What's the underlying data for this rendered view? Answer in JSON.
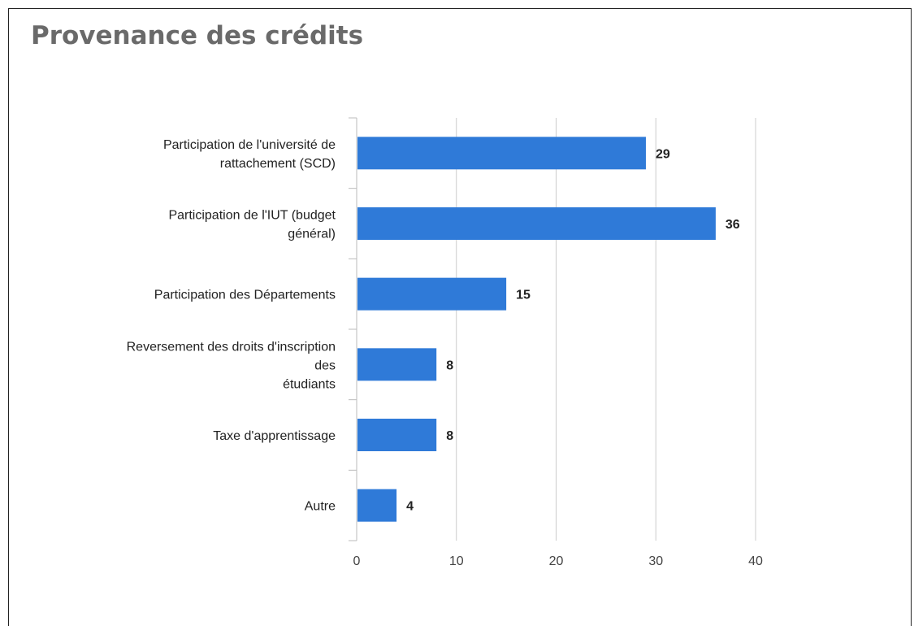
{
  "chart_data": {
    "type": "bar",
    "orientation": "horizontal",
    "title": "Provenance des crédits",
    "categories": [
      [
        "Participation de l'université de",
        "rattachement (SCD)"
      ],
      [
        "Participation de l'IUT (budget",
        "général)"
      ],
      [
        "Participation des Départements"
      ],
      [
        "Reversement des droits d'inscription",
        "des",
        "étudiants"
      ],
      [
        "Taxe d'apprentissage"
      ],
      [
        "Autre"
      ]
    ],
    "values": [
      29,
      36,
      15,
      8,
      8,
      4
    ],
    "xlim": [
      0,
      40
    ],
    "xticks": [
      0,
      10,
      20,
      30,
      40
    ],
    "grid": true,
    "bar_color": "#2f7ad8",
    "grid_color": "#cccccc"
  }
}
